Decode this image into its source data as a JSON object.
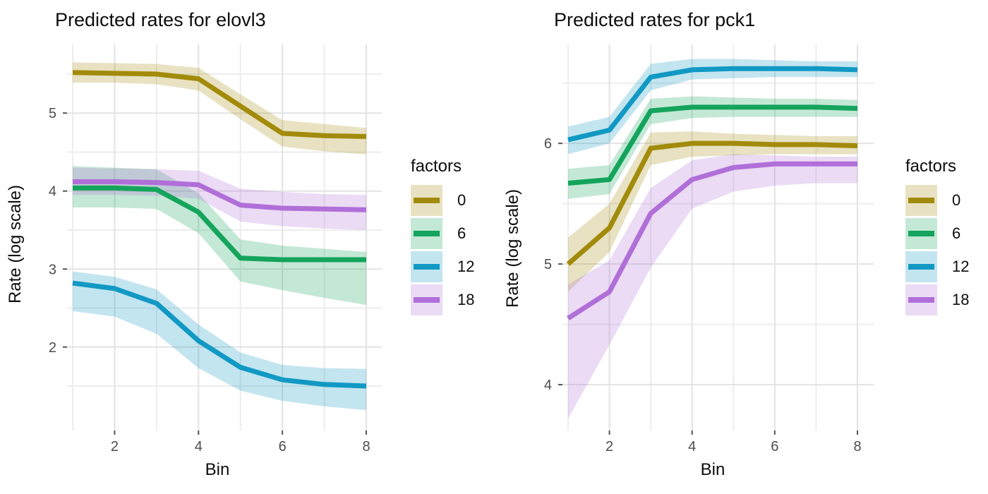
{
  "legend": {
    "title": "factors"
  },
  "chart_data": [
    {
      "id": "elovl3",
      "type": "line",
      "title": "Predicted rates for elovl3",
      "xlabel": "Bin",
      "ylabel": "Rate (log scale)",
      "x": [
        1,
        2,
        3,
        4,
        5,
        6,
        7,
        8
      ],
      "x_ticks": [
        2,
        4,
        6,
        8
      ],
      "x_minor": [
        1,
        3,
        5,
        7
      ],
      "y_ticks": [
        2,
        3,
        4,
        5
      ],
      "y_minor": [
        1.5,
        2.5,
        3.5,
        4.5,
        5.5
      ],
      "ylim": [
        0.93,
        5.88
      ],
      "grid": true,
      "legend_position": "right",
      "legend_title": "factors",
      "series": [
        {
          "name": "0",
          "color": "#A28B0A",
          "ribbon_alpha": 0.25,
          "values": [
            5.52,
            5.51,
            5.5,
            5.44,
            5.09,
            4.74,
            4.71,
            4.7
          ],
          "upper": [
            5.65,
            5.64,
            5.63,
            5.58,
            5.24,
            4.91,
            4.86,
            4.81
          ],
          "lower": [
            5.39,
            5.39,
            5.37,
            5.29,
            4.92,
            4.57,
            4.51,
            4.47
          ]
        },
        {
          "name": "6",
          "color": "#14A45C",
          "ribbon_alpha": 0.25,
          "values": [
            4.04,
            4.04,
            4.02,
            3.73,
            3.14,
            3.12,
            3.12,
            3.12
          ],
          "upper": [
            4.32,
            4.3,
            4.28,
            3.97,
            3.38,
            3.3,
            3.26,
            3.22
          ],
          "lower": [
            3.79,
            3.79,
            3.77,
            3.46,
            2.84,
            2.73,
            2.63,
            2.54
          ]
        },
        {
          "name": "12",
          "color": "#1199C4",
          "ribbon_alpha": 0.25,
          "values": [
            2.82,
            2.75,
            2.56,
            2.08,
            1.74,
            1.58,
            1.52,
            1.5
          ],
          "upper": [
            2.97,
            2.9,
            2.74,
            2.29,
            1.93,
            1.77,
            1.73,
            1.72
          ],
          "lower": [
            2.46,
            2.39,
            2.17,
            1.73,
            1.44,
            1.31,
            1.24,
            1.19
          ]
        },
        {
          "name": "18",
          "color": "#B06FD8",
          "ribbon_alpha": 0.25,
          "values": [
            4.12,
            4.12,
            4.11,
            4.08,
            3.82,
            3.78,
            3.77,
            3.76
          ],
          "upper": [
            4.3,
            4.29,
            4.28,
            4.26,
            4.03,
            3.99,
            3.96,
            3.95
          ],
          "lower": [
            3.95,
            3.95,
            3.94,
            3.9,
            3.61,
            3.55,
            3.52,
            3.5
          ]
        }
      ]
    },
    {
      "id": "pck1",
      "type": "line",
      "title": "Predicted rates for pck1",
      "xlabel": "Bin",
      "ylabel": "Rate (log scale)",
      "x": [
        1,
        2,
        3,
        4,
        5,
        6,
        7,
        8
      ],
      "x_ticks": [
        2,
        4,
        6,
        8
      ],
      "x_minor": [
        1,
        3,
        5,
        7
      ],
      "y_ticks": [
        4,
        5,
        6
      ],
      "y_minor": [
        4.5,
        5.5,
        6.5
      ],
      "ylim": [
        3.62,
        6.82
      ],
      "grid": true,
      "legend_position": "right",
      "legend_title": "factors",
      "series": [
        {
          "name": "0",
          "color": "#A28B0A",
          "ribbon_alpha": 0.25,
          "values": [
            5.0,
            5.3,
            5.96,
            6.0,
            6.0,
            5.99,
            5.99,
            5.98
          ],
          "upper": [
            5.22,
            5.5,
            6.09,
            6.1,
            6.08,
            6.07,
            6.06,
            6.06
          ],
          "lower": [
            4.77,
            5.1,
            5.82,
            5.89,
            5.9,
            5.91,
            5.91,
            5.91
          ]
        },
        {
          "name": "6",
          "color": "#14A45C",
          "ribbon_alpha": 0.25,
          "values": [
            5.67,
            5.7,
            6.27,
            6.3,
            6.3,
            6.3,
            6.3,
            6.29
          ],
          "upper": [
            5.79,
            5.82,
            6.37,
            6.39,
            6.38,
            6.37,
            6.37,
            6.36
          ],
          "lower": [
            5.54,
            5.58,
            6.16,
            6.21,
            6.22,
            6.22,
            6.22,
            6.22
          ]
        },
        {
          "name": "12",
          "color": "#1199C4",
          "ribbon_alpha": 0.25,
          "values": [
            6.03,
            6.11,
            6.55,
            6.61,
            6.62,
            6.62,
            6.62,
            6.61
          ],
          "upper": [
            6.14,
            6.22,
            6.66,
            6.7,
            6.7,
            6.69,
            6.68,
            6.68
          ],
          "lower": [
            5.91,
            6.0,
            6.44,
            6.53,
            6.54,
            6.55,
            6.55,
            6.55
          ]
        },
        {
          "name": "18",
          "color": "#B06FD8",
          "ribbon_alpha": 0.25,
          "values": [
            4.55,
            4.77,
            5.42,
            5.7,
            5.8,
            5.83,
            5.83,
            5.83
          ],
          "upper": [
            4.83,
            5.03,
            5.63,
            5.86,
            5.91,
            5.9,
            5.89,
            5.89
          ],
          "lower": [
            3.72,
            4.33,
            4.97,
            5.46,
            5.6,
            5.65,
            5.67,
            5.67
          ]
        }
      ]
    }
  ],
  "style": {
    "grid_major_color": "#E3E3E3",
    "grid_minor_color": "#EDEDED",
    "tick_color": "#555555",
    "tick_label_color": "#4D4D4D"
  }
}
